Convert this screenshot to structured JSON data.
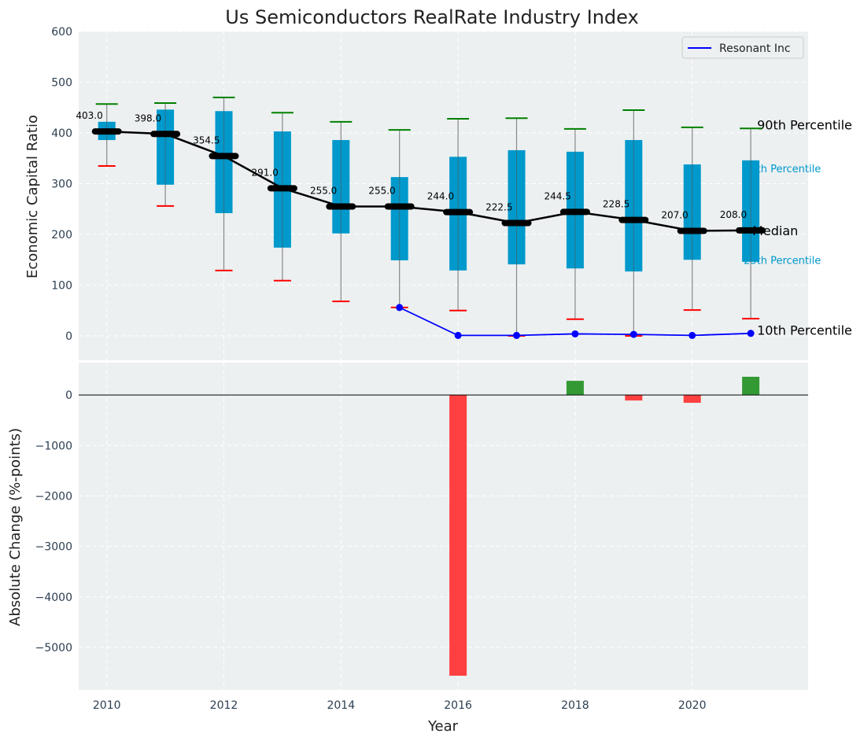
{
  "chart_data": [
    {
      "type": "box",
      "title": "Us Semiconductors RealRate Industry Index",
      "ylabel": "Economic Capital Ratio",
      "ylim": [
        -48,
        600
      ],
      "xlim": [
        2009.52,
        2021.98
      ],
      "yticks": [
        0,
        100,
        200,
        300,
        400,
        500,
        600
      ],
      "grid": true,
      "years": [
        2010,
        2011,
        2012,
        2013,
        2014,
        2015,
        2016,
        2017,
        2018,
        2019,
        2020,
        2021
      ],
      "p90": [
        457,
        459,
        470,
        440,
        422,
        406,
        428,
        429,
        408,
        445,
        411,
        409
      ],
      "p75": [
        422,
        446,
        443,
        403,
        386,
        313,
        353,
        366,
        363,
        386,
        338,
        346
      ],
      "median": [
        403.0,
        398.0,
        354.5,
        291.0,
        255.0,
        255.0,
        244.0,
        222.5,
        244.5,
        228.5,
        207.0,
        208.0
      ],
      "median_labels": [
        "403.0",
        "398.0",
        "354.5",
        "291.0",
        "255.0",
        "255.0",
        "244.0",
        "222.5",
        "244.5",
        "228.5",
        "207.0",
        "208.0"
      ],
      "p25": [
        386,
        298,
        242,
        174,
        202,
        149,
        129,
        141,
        133,
        127,
        150,
        146
      ],
      "p10": [
        335,
        256,
        129,
        109,
        68,
        56,
        50,
        0,
        33,
        0,
        51,
        34
      ],
      "company": {
        "name": "Resonant Inc",
        "x": [
          2015,
          2016,
          2017,
          2018,
          2019,
          2020,
          2021
        ],
        "y": [
          56,
          1,
          1,
          4,
          3,
          1,
          5
        ]
      },
      "annotations": {
        "p90": "90th Percentile",
        "p75": "75th Percentile",
        "median": "Median",
        "p25": "25th Percentile",
        "p10": "10th Percentile"
      },
      "legend": {
        "position": "top-right",
        "entries": [
          "Resonant Inc"
        ]
      },
      "colors": {
        "box": "#0099cc",
        "company": "#0000ff",
        "p90": "#008000",
        "p10": "#ff0000",
        "bg": "#ecf0f1"
      }
    },
    {
      "type": "bar",
      "xlabel": "Year",
      "ylabel": "Absolute Change (%-points)",
      "ylim": [
        -5840,
        640
      ],
      "yticks": [
        0,
        -1000,
        -2000,
        -3000,
        -4000,
        -5000
      ],
      "ytick_labels": [
        "0",
        "−1000",
        "−2000",
        "−3000",
        "−4000",
        "−5000"
      ],
      "xticks": [
        2010,
        2012,
        2014,
        2016,
        2018,
        2020
      ],
      "x": [
        2016,
        2018,
        2019,
        2020,
        2021
      ],
      "values": [
        -5560,
        280,
        -110,
        -155,
        360
      ],
      "colors": {
        "pos": "#339933",
        "neg": "#ff4040"
      }
    }
  ]
}
